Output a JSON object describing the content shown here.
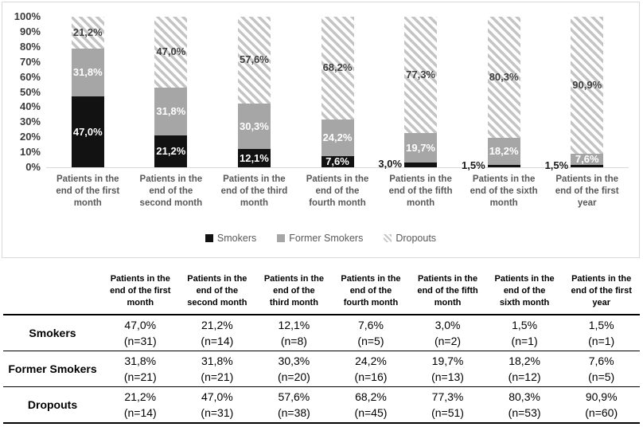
{
  "chart_data": {
    "type": "bar",
    "subtype": "stacked-100-percent",
    "title": "",
    "xlabel": "",
    "ylabel": "",
    "ylim": [
      0,
      100
    ],
    "grid": false,
    "legend_position": "bottom",
    "y_ticks": [
      "0%",
      "10%",
      "20%",
      "30%",
      "40%",
      "50%",
      "60%",
      "70%",
      "80%",
      "90%",
      "100%"
    ],
    "categories": [
      [
        "Patients in the",
        "end of the first",
        "month"
      ],
      [
        "Patients in the",
        "end of the",
        "second month"
      ],
      [
        "Patients in the",
        "end of the third",
        "month"
      ],
      [
        "Patients in the",
        "end of the",
        "fourth month"
      ],
      [
        "Patients in the",
        "end of the fifth",
        "month"
      ],
      [
        "Patients in the",
        "end of the sixth",
        "month"
      ],
      [
        "Patients in the",
        "end of the first",
        "year"
      ]
    ],
    "series": [
      {
        "name": "Smokers",
        "style": "solid",
        "color": "#121212",
        "label_color": "#ffffff",
        "values": [
          47.0,
          21.2,
          12.1,
          7.6,
          3.0,
          1.5,
          1.5
        ],
        "labels": [
          "47,0%",
          "21,2%",
          "12,1%",
          "7,6%",
          "3,0%",
          "1,5%",
          "1,5%"
        ]
      },
      {
        "name": "Former Smokers",
        "style": "solid",
        "color": "#a6a6a6",
        "label_color": "#ffffff",
        "values": [
          31.8,
          31.8,
          30.3,
          24.2,
          19.7,
          18.2,
          7.6
        ],
        "labels": [
          "31,8%",
          "31,8%",
          "30,3%",
          "24,2%",
          "19,7%",
          "18,2%",
          "7,6%"
        ]
      },
      {
        "name": "Dropouts",
        "style": "diagonal-hatch",
        "color": "#c4c4c4",
        "label_color": "#404040",
        "values": [
          21.2,
          47.0,
          57.6,
          68.2,
          77.3,
          80.3,
          90.9
        ],
        "labels": [
          "21,2%",
          "47,0%",
          "57,6%",
          "68,2%",
          "77,3%",
          "80,3%",
          "90,9%"
        ]
      }
    ]
  },
  "table": {
    "corner_label": "",
    "columns": [
      [
        "Patients in the",
        "end of the first",
        "month"
      ],
      [
        "Patients in the",
        "end of the",
        "second month"
      ],
      [
        "Patients in the",
        "end of the",
        "third month"
      ],
      [
        "Patients in the",
        "end of the",
        "fourth month"
      ],
      [
        "Patients in the",
        "end of the fifth",
        "month"
      ],
      [
        "Patients in the",
        "end of the",
        "sixth month"
      ],
      [
        "Patients in the",
        "end of the first",
        "year"
      ]
    ],
    "rows": [
      {
        "label": "Smokers",
        "cells": [
          {
            "pct": "47,0%",
            "n": "(n=31)"
          },
          {
            "pct": "21,2%",
            "n": "(n=14)"
          },
          {
            "pct": "12,1%",
            "n": "(n=8)"
          },
          {
            "pct": "7,6%",
            "n": "(n=5)"
          },
          {
            "pct": "3,0%",
            "n": "(n=2)"
          },
          {
            "pct": "1,5%",
            "n": "(n=1)"
          },
          {
            "pct": "1,5%",
            "n": "(n=1)"
          }
        ]
      },
      {
        "label": "Former Smokers",
        "cells": [
          {
            "pct": "31,8%",
            "n": "(n=21)"
          },
          {
            "pct": "31,8%",
            "n": "(n=21)"
          },
          {
            "pct": "30,3%",
            "n": "(n=20)"
          },
          {
            "pct": "24,2%",
            "n": "(n=16)"
          },
          {
            "pct": "19,7%",
            "n": "(n=13)"
          },
          {
            "pct": "18,2%",
            "n": "(n=12)"
          },
          {
            "pct": "7,6%",
            "n": "(n=5)"
          }
        ]
      },
      {
        "label": "Dropouts",
        "cells": [
          {
            "pct": "21,2%",
            "n": "(n=14)"
          },
          {
            "pct": "47,0%",
            "n": "(n=31)"
          },
          {
            "pct": "57,6%",
            "n": "(n=38)"
          },
          {
            "pct": "68,2%",
            "n": "(n=45)"
          },
          {
            "pct": "77,3%",
            "n": "(n=51)"
          },
          {
            "pct": "80,3%",
            "n": "(n=53)"
          },
          {
            "pct": "90,9%",
            "n": "(n=60)"
          }
        ]
      }
    ]
  },
  "colors": {
    "panel_border": "#d9d9d9",
    "axis_line": "#d9d9d9",
    "tick_text": "#3a3a3a",
    "category_text": "#595959",
    "legend_text": "#595959",
    "table_rule": "#000000"
  }
}
